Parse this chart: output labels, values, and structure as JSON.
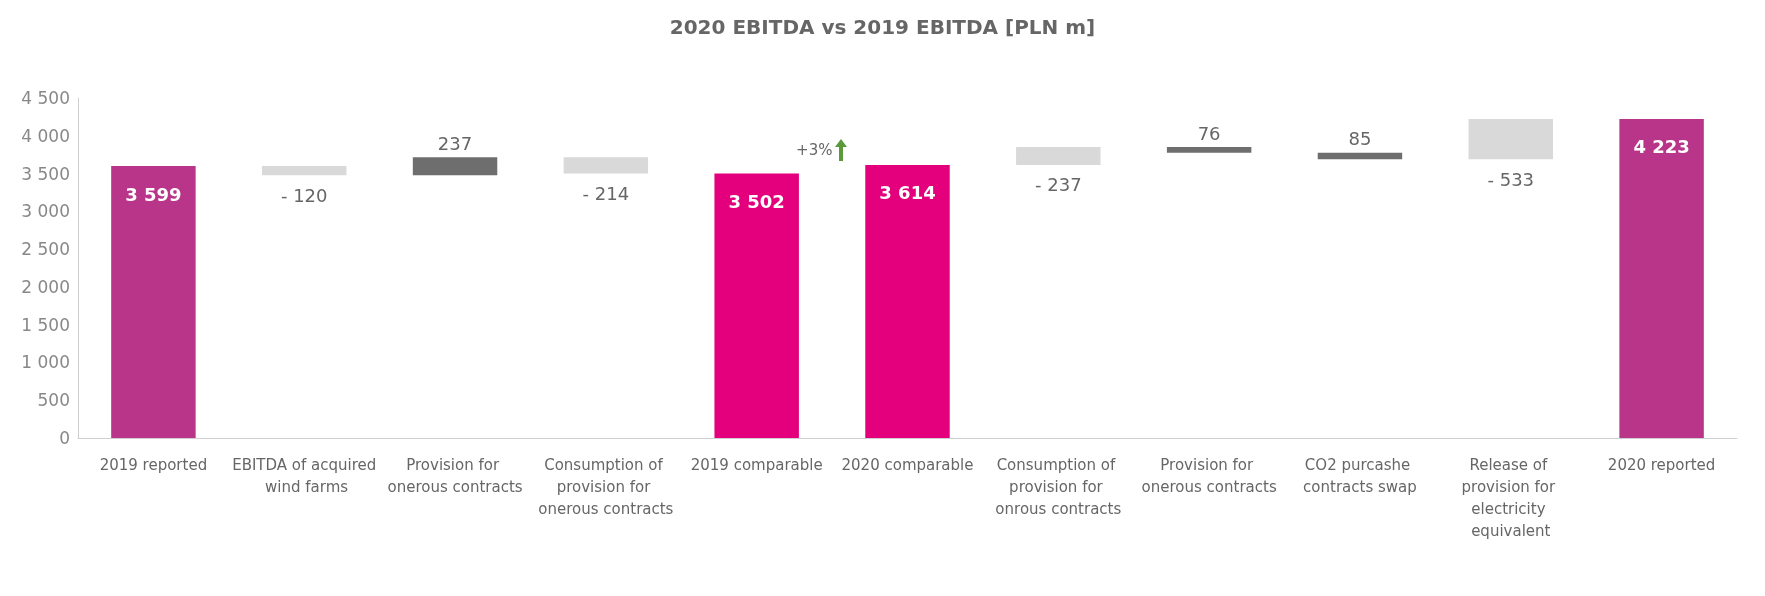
{
  "chart_data": {
    "type": "bar",
    "title": "2020 EBITDA vs 2019 EBITDA [PLN m]",
    "categories": [
      "2019 reported",
      "EBITDA of acquired wind farms",
      "Provision for onerous contracts",
      "Consumption of provision for onerous contracts",
      "2019 comparable",
      "2020 comparable",
      "Consumption of provision for onrous contracts",
      "Provision for onerous contracts",
      "CO2 purcashe contracts swap",
      "Release of provision for electricity equivalent",
      "2020 reported"
    ],
    "values": [
      3599,
      -120,
      237,
      -214,
      3502,
      3614,
      -237,
      76,
      85,
      -533,
      4223
    ],
    "base": [
      0,
      3599,
      3479,
      3716,
      0,
      0,
      3851,
      3775,
      3690,
      4223,
      0
    ],
    "colors": [
      "#b8358a",
      "#d9d9d9",
      "#6e6e6e",
      "#d9d9d9",
      "#e4007c",
      "#e4007c",
      "#d9d9d9",
      "#6e6e6e",
      "#6e6e6e",
      "#d9d9d9",
      "#b8358a"
    ],
    "value_labels": [
      "3 599",
      "- 120",
      "237",
      "- 214",
      "3 502",
      "3 614",
      "- 237",
      "76",
      "85",
      "- 533",
      "4 223"
    ],
    "ylim": [
      0,
      4500
    ],
    "yticks": [
      0,
      500,
      {
        "value": 1000,
        "label": "1 000"
      },
      {
        "value": 1500,
        "label": "1 500"
      },
      {
        "value": 2000,
        "label": "2 000"
      },
      {
        "value": 2500,
        "label": "2 500"
      },
      {
        "value": 3000,
        "label": "3 000"
      },
      {
        "value": 3500,
        "label": "3 500"
      },
      {
        "value": 4000,
        "label": "4 000"
      },
      {
        "value": 4500,
        "label": "4 500"
      }
    ],
    "annotations": [
      "+3%"
    ],
    "grid": false
  }
}
